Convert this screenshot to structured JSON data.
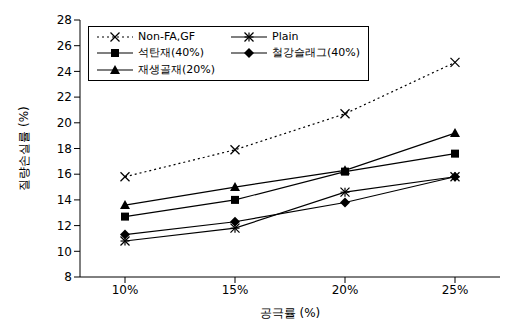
{
  "chart_data": {
    "type": "line",
    "x_label": "공극률 (%)",
    "y_label": "질량손실률 (%)",
    "categories": [
      "10%",
      "15%",
      "20%",
      "25%"
    ],
    "ylim": [
      8,
      28
    ],
    "yticks": [
      8,
      10,
      12,
      14,
      16,
      18,
      20,
      22,
      24,
      26,
      28
    ],
    "grid": false,
    "legend": "upper left",
    "series": [
      {
        "name": "Non-FA,GF",
        "color": "#000000",
        "marker": "x",
        "line_style": "dotted",
        "values": [
          15.8,
          17.9,
          20.7,
          24.7
        ]
      },
      {
        "name": "Plain",
        "color": "#000000",
        "marker": "asterisk",
        "line_style": "solid",
        "values": [
          10.8,
          11.8,
          14.6,
          15.8
        ]
      },
      {
        "name": "석탄재(40%)",
        "color": "#000000",
        "marker": "square",
        "line_style": "solid",
        "values": [
          12.7,
          14.0,
          16.2,
          17.6
        ]
      },
      {
        "name": "철강슬래그(40%)",
        "color": "#000000",
        "marker": "diamond",
        "line_style": "solid",
        "values": [
          11.3,
          12.3,
          13.8,
          15.8
        ]
      },
      {
        "name": "재생골재(20%)",
        "color": "#000000",
        "marker": "triangle",
        "line_style": "solid",
        "values": [
          13.6,
          15.0,
          16.3,
          19.2
        ]
      }
    ]
  }
}
